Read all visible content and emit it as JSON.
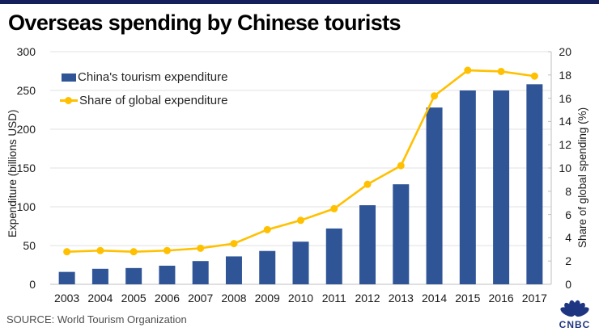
{
  "header": {
    "title": "Overseas spending by Chinese tourists"
  },
  "legend": [
    {
      "label": "China's tourism expenditure",
      "type": "bar"
    },
    {
      "label": "Share of global expenditure",
      "type": "line"
    }
  ],
  "chart_data": {
    "type": "bar",
    "title": "Overseas spending by Chinese tourists",
    "categories": [
      "2003",
      "2004",
      "2005",
      "2006",
      "2007",
      "2008",
      "2009",
      "2010",
      "2011",
      "2012",
      "2013",
      "2014",
      "2015",
      "2016",
      "2017"
    ],
    "series": [
      {
        "name": "China's tourism expenditure",
        "type": "bar",
        "axis": "left",
        "values": [
          16,
          20,
          21,
          24,
          30,
          36,
          43,
          55,
          72,
          102,
          129,
          228,
          250,
          250,
          258
        ]
      },
      {
        "name": "Share of global expenditure",
        "type": "line",
        "axis": "right",
        "values": [
          2.8,
          2.9,
          2.8,
          2.9,
          3.1,
          3.5,
          4.7,
          5.5,
          6.5,
          8.6,
          10.2,
          16.2,
          18.4,
          18.3,
          17.9
        ]
      }
    ],
    "left_axis": {
      "label": "Expenditure (billions USD)",
      "ticks": [
        0,
        50,
        100,
        150,
        200,
        250,
        300
      ],
      "range": [
        0,
        300
      ]
    },
    "right_axis": {
      "label": "Share of global spending (%)",
      "ticks": [
        0,
        2,
        4,
        6,
        8,
        10,
        12,
        14,
        16,
        18,
        20
      ],
      "range": [
        0,
        20
      ]
    },
    "grid": true,
    "legend_position": "top-left-inside"
  },
  "footer": {
    "source": "SOURCE: World Tourism Organization",
    "logo_text": "CNBC"
  },
  "colors": {
    "top_bar": "#15205A",
    "bar": "#2F5597",
    "line": "#FFC000",
    "gridline": "#E0E0E0",
    "axis_line": "#BFBFBF",
    "logo": "#1E3582",
    "title": "#000000",
    "source_text": "#4D4D4D"
  }
}
